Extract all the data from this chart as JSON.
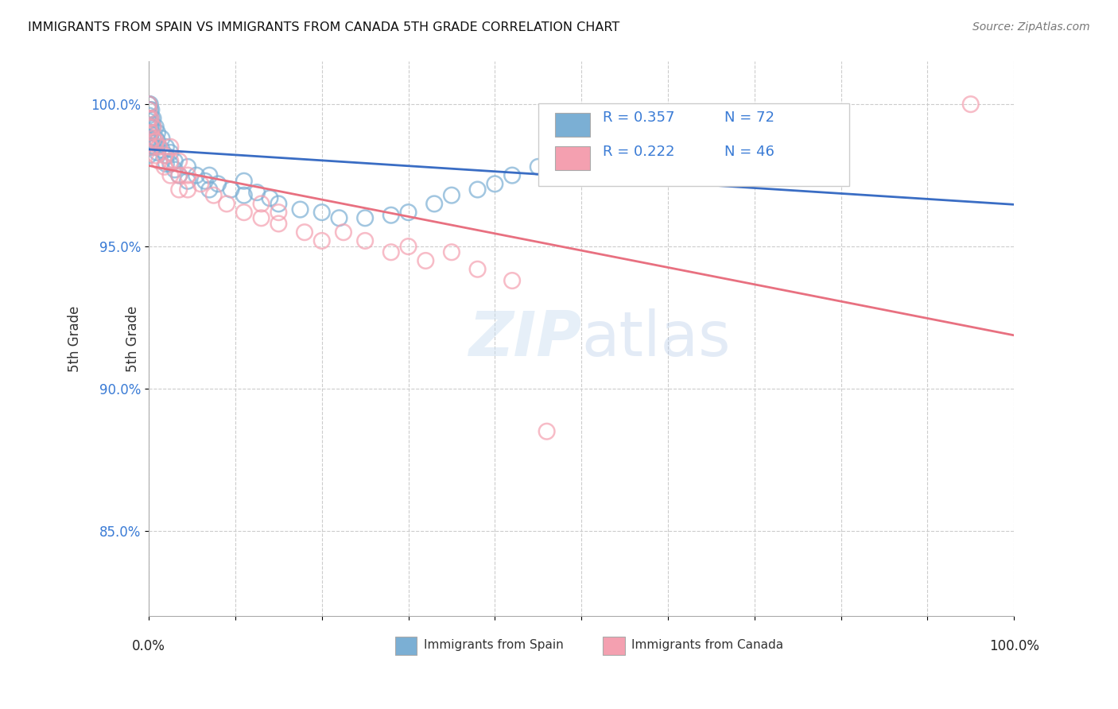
{
  "title": "IMMIGRANTS FROM SPAIN VS IMMIGRANTS FROM CANADA 5TH GRADE CORRELATION CHART",
  "source": "Source: ZipAtlas.com",
  "ylabel": "5th Grade",
  "y_ticks": [
    85.0,
    90.0,
    95.0,
    100.0
  ],
  "y_tick_labels": [
    "85.0%",
    "90.0%",
    "95.0%",
    "100.0%"
  ],
  "xlim": [
    0.0,
    100.0
  ],
  "ylim": [
    82.0,
    101.5
  ],
  "legend_r1": "R = 0.357",
  "legend_n1": "N = 72",
  "legend_r2": "R = 0.222",
  "legend_n2": "N = 46",
  "color_spain": "#7bafd4",
  "color_canada": "#f4a0b0",
  "trendline_color_spain": "#3a6dc4",
  "trendline_color_canada": "#e87080",
  "spain_x": [
    0.0,
    0.0,
    0.0,
    0.0,
    0.0,
    0.0,
    0.0,
    0.0,
    0.0,
    0.0,
    0.15,
    0.15,
    0.15,
    0.15,
    0.15,
    0.3,
    0.3,
    0.3,
    0.3,
    0.3,
    0.3,
    0.5,
    0.5,
    0.5,
    0.5,
    0.8,
    0.8,
    0.8,
    1.0,
    1.0,
    1.0,
    1.5,
    1.5,
    2.0,
    2.0,
    2.0,
    2.5,
    2.5,
    3.0,
    3.0,
    3.5,
    4.5,
    4.5,
    5.5,
    6.5,
    7.0,
    7.0,
    8.0,
    9.5,
    11.0,
    11.0,
    12.5,
    14.0,
    15.0,
    17.5,
    20.0,
    22.0,
    25.0,
    28.0,
    30.0,
    33.0,
    35.0,
    38.0,
    40.0,
    42.0,
    45.0,
    47.0,
    50.0,
    55.0,
    60.0,
    65.0,
    70.0
  ],
  "spain_y": [
    100.0,
    100.0,
    99.8,
    99.6,
    99.4,
    99.2,
    99.0,
    98.8,
    98.5,
    98.2,
    100.0,
    99.8,
    99.5,
    99.2,
    99.0,
    99.8,
    99.5,
    99.2,
    99.0,
    98.7,
    98.5,
    99.5,
    99.2,
    98.8,
    98.5,
    99.2,
    98.8,
    98.5,
    99.0,
    98.7,
    98.3,
    98.8,
    98.4,
    98.5,
    98.2,
    97.9,
    98.3,
    97.9,
    98.0,
    97.7,
    97.5,
    97.8,
    97.3,
    97.5,
    97.3,
    97.5,
    97.0,
    97.2,
    97.0,
    97.3,
    96.8,
    96.9,
    96.7,
    96.5,
    96.3,
    96.2,
    96.0,
    96.0,
    96.1,
    96.2,
    96.5,
    96.8,
    97.0,
    97.2,
    97.5,
    97.8,
    98.0,
    98.2,
    98.5,
    98.8,
    99.0,
    99.5
  ],
  "canada_x": [
    0.0,
    0.0,
    0.0,
    0.0,
    0.0,
    0.0,
    0.2,
    0.2,
    0.2,
    0.5,
    0.5,
    0.8,
    0.8,
    1.2,
    1.2,
    1.8,
    1.8,
    2.5,
    2.5,
    2.5,
    3.5,
    3.5,
    3.5,
    4.5,
    4.5,
    6.0,
    7.5,
    9.0,
    11.0,
    13.0,
    13.0,
    15.0,
    15.0,
    18.0,
    20.0,
    22.5,
    25.0,
    28.0,
    30.0,
    32.0,
    35.0,
    38.0,
    42.0,
    46.0,
    95.0
  ],
  "canada_y": [
    100.0,
    99.8,
    99.5,
    99.2,
    98.9,
    98.6,
    99.5,
    99.0,
    98.5,
    99.2,
    98.8,
    98.7,
    98.2,
    98.5,
    98.0,
    98.2,
    97.8,
    98.5,
    98.0,
    97.5,
    98.0,
    97.5,
    97.0,
    97.5,
    97.0,
    97.2,
    96.8,
    96.5,
    96.2,
    96.5,
    96.0,
    96.2,
    95.8,
    95.5,
    95.2,
    95.5,
    95.2,
    94.8,
    95.0,
    94.5,
    94.8,
    94.2,
    93.8,
    88.5,
    100.0
  ]
}
